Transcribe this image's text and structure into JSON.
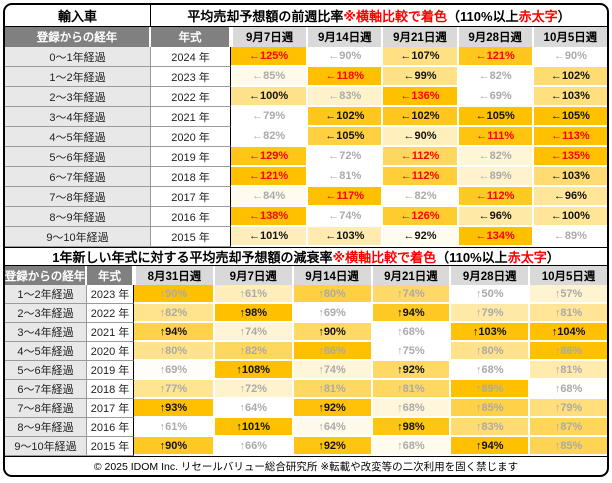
{
  "footer": "© 2025 IDOM Inc. リセールバリュー総合研究所 ※転載や改変等の二次利用を固く禁じます",
  "colors": {
    "heat_max": "#FFC000",
    "heat_min": "#FFFFFF",
    "red_emphasis": "#FF0000",
    "gray_value": "#AAAAAA",
    "header_dark": "#808080",
    "header_light": "#D9D9D9",
    "label_bg": "#E9E8E8"
  },
  "legend": {
    "style_codes": {
      "r": "red bold (110% or more)",
      "k": "black bold",
      "g": "gray"
    },
    "shading_rule": "row-relative color scale from white (row min) to #FFC000 (row max)"
  },
  "chart_data": [
    {
      "type": "heatmap",
      "name": "weekly-ratio-table",
      "corner_label": "輸入車",
      "title_parts": [
        {
          "t": "平均売却予想額の前週比率 ",
          "c": "k"
        },
        {
          "t": "※横軸比較で着色",
          "c": "r"
        },
        {
          "t": "（110%以上 ",
          "c": "k"
        },
        {
          "t": "赤太字",
          "c": "r"
        },
        {
          "t": "）",
          "c": "k"
        }
      ],
      "col_headers": [
        "登録からの経年",
        "年式",
        "9月7日週",
        "9月14日週",
        "9月21日週",
        "9月28日週",
        "10月5日週"
      ],
      "arrow": "←",
      "unit": "%",
      "rows": [
        {
          "age": "0〜1年経過",
          "year": "2024 年",
          "cells": [
            {
              "v": 125,
              "s": "r"
            },
            {
              "v": 90,
              "s": "g"
            },
            {
              "v": 107,
              "s": "k"
            },
            {
              "v": 121,
              "s": "r"
            },
            {
              "v": 90,
              "s": "g"
            }
          ]
        },
        {
          "age": "1〜2年経過",
          "year": "2023 年",
          "cells": [
            {
              "v": 85,
              "s": "g"
            },
            {
              "v": 118,
              "s": "r"
            },
            {
              "v": 99,
              "s": "k"
            },
            {
              "v": 82,
              "s": "g"
            },
            {
              "v": 102,
              "s": "k"
            }
          ]
        },
        {
          "age": "2〜3年経過",
          "year": "2022 年",
          "cells": [
            {
              "v": 100,
              "s": "k"
            },
            {
              "v": 83,
              "s": "g"
            },
            {
              "v": 136,
              "s": "r"
            },
            {
              "v": 69,
              "s": "g"
            },
            {
              "v": 103,
              "s": "k"
            }
          ]
        },
        {
          "age": "3〜4年経過",
          "year": "2021 年",
          "cells": [
            {
              "v": 79,
              "s": "g"
            },
            {
              "v": 102,
              "s": "k"
            },
            {
              "v": 102,
              "s": "k"
            },
            {
              "v": 105,
              "s": "k"
            },
            {
              "v": 105,
              "s": "k"
            }
          ]
        },
        {
          "age": "4〜5年経過",
          "year": "2020 年",
          "cells": [
            {
              "v": 82,
              "s": "g"
            },
            {
              "v": 105,
              "s": "k"
            },
            {
              "v": 90,
              "s": "k"
            },
            {
              "v": 111,
              "s": "r"
            },
            {
              "v": 113,
              "s": "r"
            }
          ]
        },
        {
          "age": "5〜6年経過",
          "year": "2019 年",
          "cells": [
            {
              "v": 129,
              "s": "r"
            },
            {
              "v": 72,
              "s": "g"
            },
            {
              "v": 112,
              "s": "r"
            },
            {
              "v": 82,
              "s": "g"
            },
            {
              "v": 135,
              "s": "r"
            }
          ]
        },
        {
          "age": "6〜7年経過",
          "year": "2018 年",
          "cells": [
            {
              "v": 121,
              "s": "r"
            },
            {
              "v": 81,
              "s": "g"
            },
            {
              "v": 112,
              "s": "r"
            },
            {
              "v": 89,
              "s": "g"
            },
            {
              "v": 103,
              "s": "k"
            }
          ]
        },
        {
          "age": "7〜8年経過",
          "year": "2017 年",
          "cells": [
            {
              "v": 84,
              "s": "g"
            },
            {
              "v": 117,
              "s": "r"
            },
            {
              "v": 82,
              "s": "g"
            },
            {
              "v": 112,
              "s": "r"
            },
            {
              "v": 96,
              "s": "k"
            }
          ]
        },
        {
          "age": "8〜9年経過",
          "year": "2016 年",
          "cells": [
            {
              "v": 138,
              "s": "r"
            },
            {
              "v": 74,
              "s": "g"
            },
            {
              "v": 126,
              "s": "r"
            },
            {
              "v": 96,
              "s": "k"
            },
            {
              "v": 100,
              "s": "k"
            }
          ]
        },
        {
          "age": "9〜10年経過",
          "year": "2015 年",
          "cells": [
            {
              "v": 101,
              "s": "k"
            },
            {
              "v": 103,
              "s": "k"
            },
            {
              "v": 92,
              "s": "k"
            },
            {
              "v": 134,
              "s": "r"
            },
            {
              "v": 89,
              "s": "g"
            }
          ]
        }
      ]
    },
    {
      "type": "heatmap",
      "name": "decay-rate-table",
      "title_parts": [
        {
          "t": "1年新しい年式に対する平均売却予想額の減衰率 ",
          "c": "k"
        },
        {
          "t": "※横軸比較で着色",
          "c": "r"
        },
        {
          "t": "（110%以上 ",
          "c": "k"
        },
        {
          "t": "赤太字",
          "c": "r"
        },
        {
          "t": "）",
          "c": "k"
        }
      ],
      "col_headers": [
        "登録からの経年",
        "年式",
        "8月31日週",
        "9月7日週",
        "9月14日週",
        "9月21日週",
        "9月28日週",
        "10月5日週"
      ],
      "arrow": "↑",
      "unit": "%",
      "rows": [
        {
          "age": "1〜2年経過",
          "year": "2023 年",
          "cells": [
            {
              "v": 90,
              "s": "g"
            },
            {
              "v": 61,
              "s": "g"
            },
            {
              "v": 80,
              "s": "g"
            },
            {
              "v": 74,
              "s": "g"
            },
            {
              "v": 50,
              "s": "g"
            },
            {
              "v": 57,
              "s": "g"
            }
          ]
        },
        {
          "age": "2〜3年経過",
          "year": "2022 年",
          "cells": [
            {
              "v": 82,
              "s": "g"
            },
            {
              "v": 98,
              "s": "k"
            },
            {
              "v": 69,
              "s": "g"
            },
            {
              "v": 94,
              "s": "k"
            },
            {
              "v": 79,
              "s": "g"
            },
            {
              "v": 81,
              "s": "g"
            }
          ]
        },
        {
          "age": "3〜4年経過",
          "year": "2021 年",
          "cells": [
            {
              "v": 94,
              "s": "k"
            },
            {
              "v": 74,
              "s": "g"
            },
            {
              "v": 90,
              "s": "k"
            },
            {
              "v": 68,
              "s": "g"
            },
            {
              "v": 103,
              "s": "k"
            },
            {
              "v": 104,
              "s": "k"
            }
          ]
        },
        {
          "age": "4〜5年経過",
          "year": "2020 年",
          "cells": [
            {
              "v": 80,
              "s": "g"
            },
            {
              "v": 82,
              "s": "g"
            },
            {
              "v": 86,
              "s": "g"
            },
            {
              "v": 75,
              "s": "g"
            },
            {
              "v": 80,
              "s": "g"
            },
            {
              "v": 86,
              "s": "g"
            }
          ]
        },
        {
          "age": "5〜6年経過",
          "year": "2019 年",
          "cells": [
            {
              "v": 69,
              "s": "g"
            },
            {
              "v": 108,
              "s": "k"
            },
            {
              "v": 74,
              "s": "g"
            },
            {
              "v": 92,
              "s": "k"
            },
            {
              "v": 68,
              "s": "g"
            },
            {
              "v": 81,
              "s": "g"
            }
          ]
        },
        {
          "age": "6〜7年経過",
          "year": "2018 年",
          "cells": [
            {
              "v": 77,
              "s": "g"
            },
            {
              "v": 72,
              "s": "g"
            },
            {
              "v": 81,
              "s": "g"
            },
            {
              "v": 81,
              "s": "g"
            },
            {
              "v": 89,
              "s": "g"
            },
            {
              "v": 68,
              "s": "g"
            }
          ]
        },
        {
          "age": "7〜8年経過",
          "year": "2017 年",
          "cells": [
            {
              "v": 93,
              "s": "k"
            },
            {
              "v": 64,
              "s": "g"
            },
            {
              "v": 92,
              "s": "k"
            },
            {
              "v": 68,
              "s": "g"
            },
            {
              "v": 85,
              "s": "g"
            },
            {
              "v": 79,
              "s": "g"
            }
          ]
        },
        {
          "age": "8〜9年経過",
          "year": "2016 年",
          "cells": [
            {
              "v": 61,
              "s": "g"
            },
            {
              "v": 101,
              "s": "k"
            },
            {
              "v": 64,
              "s": "g"
            },
            {
              "v": 98,
              "s": "k"
            },
            {
              "v": 83,
              "s": "g"
            },
            {
              "v": 87,
              "s": "g"
            }
          ]
        },
        {
          "age": "9〜10年経過",
          "year": "2015 年",
          "cells": [
            {
              "v": 90,
              "s": "k"
            },
            {
              "v": 66,
              "s": "g"
            },
            {
              "v": 92,
              "s": "k"
            },
            {
              "v": 68,
              "s": "g"
            },
            {
              "v": 94,
              "s": "k"
            },
            {
              "v": 85,
              "s": "g"
            }
          ]
        }
      ]
    }
  ]
}
